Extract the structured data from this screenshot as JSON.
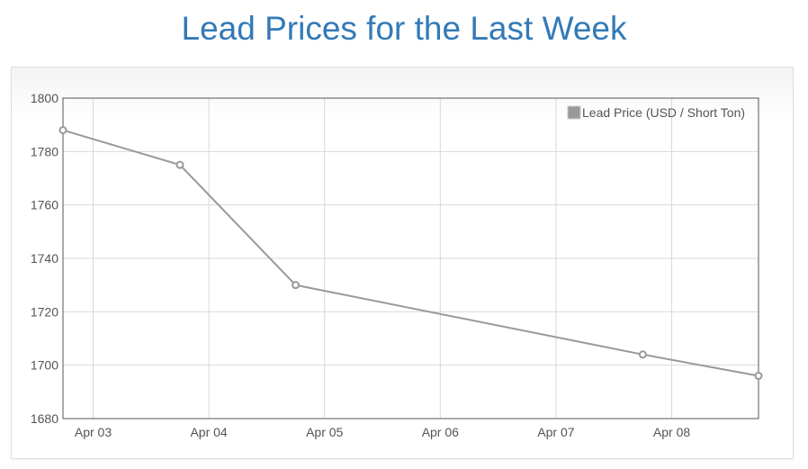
{
  "title": "Lead Prices for the Last Week",
  "colors": {
    "title": "#337ab7",
    "series": "#999999",
    "grid": "#d8d8d8",
    "axis": "#545454"
  },
  "chart_data": {
    "type": "line",
    "title": "Lead Prices for the Last Week",
    "xlabel": "",
    "ylabel": "",
    "x_axis_type": "date",
    "x_ticks": [
      "Apr 03",
      "Apr 04",
      "Apr 05",
      "Apr 06",
      "Apr 07",
      "Apr 08"
    ],
    "xlim": [
      "Apr 02 17:45",
      "Apr 08 18:00"
    ],
    "ylim": [
      1680,
      1800
    ],
    "y_ticks": [
      1680,
      1700,
      1720,
      1740,
      1760,
      1780,
      1800
    ],
    "grid": true,
    "legend_position": "top-right",
    "series": [
      {
        "name": "Lead Price (USD / Short Ton)",
        "color": "#999999",
        "points": [
          {
            "x": "Apr 02 17:45",
            "y": 1788
          },
          {
            "x": "Apr 03 18:00",
            "y": 1775
          },
          {
            "x": "Apr 04 18:00",
            "y": 1730
          },
          {
            "x": "Apr 07 18:00",
            "y": 1704
          },
          {
            "x": "Apr 08 18:00",
            "y": 1696
          }
        ]
      }
    ]
  }
}
